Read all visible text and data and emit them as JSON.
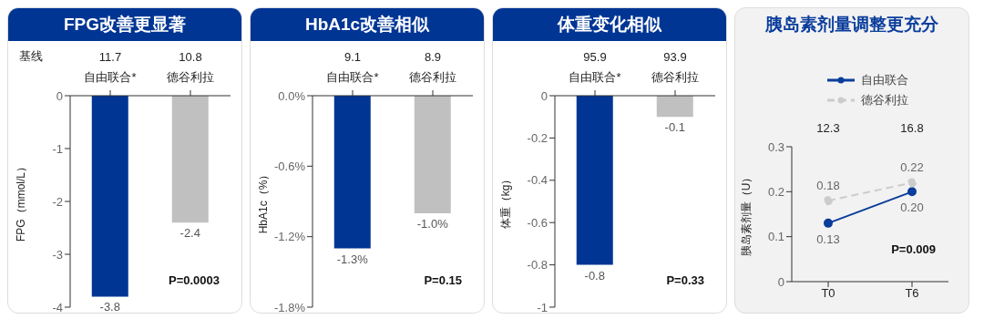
{
  "chart_data": [
    {
      "type": "bar",
      "title": "FPG改善更显著",
      "ylabel": "FPG（mmol/L）",
      "categories": [
        "自由联合*",
        "德谷利拉"
      ],
      "values": [
        -3.8,
        -2.4
      ],
      "colors": [
        "#003594",
        "#c0c0c0"
      ],
      "ylim": [
        -4,
        0
      ],
      "yticks": [
        -4,
        -3,
        -2,
        -1,
        0
      ],
      "data_labels": true,
      "annotations": [
        "基线",
        "11.7",
        "10.8",
        "P=0.0003"
      ]
    },
    {
      "type": "bar",
      "title": "HbA1c改善相似",
      "ylabel": "HbA1c（%）",
      "categories": [
        "自由联合*",
        "德谷利拉"
      ],
      "values": [
        -1.3,
        -1.0
      ],
      "value_labels": [
        "-1.3%",
        "-1.0%"
      ],
      "colors": [
        "#003594",
        "#c0c0c0"
      ],
      "ylim": [
        -1.8,
        0
      ],
      "yticks": [
        {
          "value": -1.8,
          "label": "-1.8%"
        },
        {
          "value": -1.2,
          "label": "-1.2%"
        },
        {
          "value": -0.6,
          "label": "-0.6%"
        },
        {
          "value": 0,
          "label": "0.0%"
        }
      ],
      "annotations": [
        "9.1",
        "8.9",
        "P=0.15"
      ]
    },
    {
      "type": "bar",
      "title": "体重变化相似",
      "ylabel": "体重（kg）",
      "categories": [
        "自由联合*",
        "德谷利拉"
      ],
      "values": [
        -0.8,
        -0.1
      ],
      "colors": [
        "#003594",
        "#c0c0c0"
      ],
      "ylim": [
        -1,
        0
      ],
      "yticks": [
        -1,
        -0.8,
        -0.6,
        -0.4,
        -0.2,
        0
      ],
      "data_labels": true,
      "annotations": [
        "95.9",
        "93.9",
        "P=0.33"
      ]
    },
    {
      "type": "line",
      "title": "胰岛素剂量调整更充分",
      "ylabel": "胰岛素剂量（U）",
      "categories": [
        "T0",
        "T6"
      ],
      "marker": "circle",
      "legend": "top",
      "ylim": [
        0,
        0.3
      ],
      "yticks": [
        0,
        0.1,
        0.2,
        0.3
      ],
      "series": [
        {
          "name": "自由联合",
          "color": "#0a3d9c",
          "values": [
            0.13,
            0.2
          ],
          "value_labels": [
            "0.13",
            "0.20"
          ],
          "line_style": "solid"
        },
        {
          "name": "德谷利拉",
          "color": "#cccccc",
          "values": [
            0.18,
            0.22
          ],
          "value_labels": [
            "0.18",
            "0.22"
          ],
          "line_style": "dashed"
        }
      ],
      "annotations": [
        "12.3",
        "16.8",
        "P=0.009"
      ]
    }
  ]
}
